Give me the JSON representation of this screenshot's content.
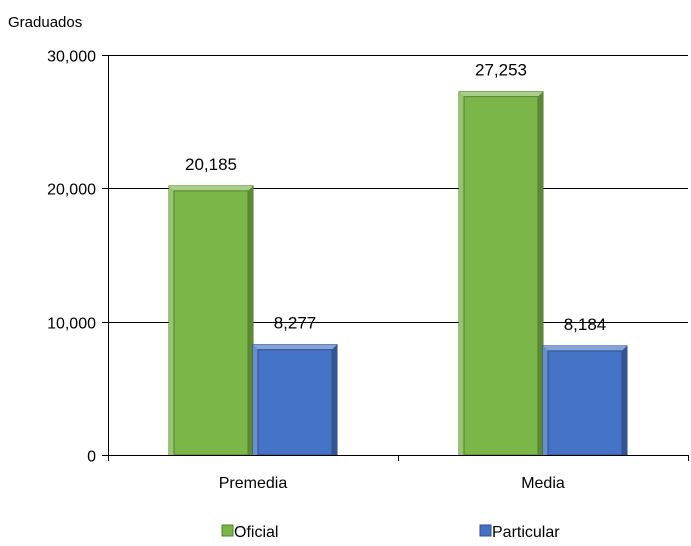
{
  "chart_data": {
    "type": "bar",
    "title": "",
    "xlabel": "",
    "ylabel": "Graduados",
    "categories": [
      "Premedia",
      "Media"
    ],
    "series": [
      {
        "name": "Oficial",
        "values": [
          20185,
          27253
        ],
        "labels": [
          "20,185",
          "27,253"
        ],
        "color": "#7AB648",
        "style": "bevel"
      },
      {
        "name": "Particular",
        "values": [
          8277,
          8184
        ],
        "labels": [
          "8,277",
          "8,184"
        ],
        "color": "#4472C4",
        "style": "bevel"
      }
    ],
    "ylim": [
      0,
      30000
    ],
    "yticks": [
      {
        "value": 0,
        "label": "0"
      },
      {
        "value": 10000,
        "label": "10,000"
      },
      {
        "value": 20000,
        "label": "20,000"
      },
      {
        "value": 30000,
        "label": "30,000"
      }
    ],
    "grid": true,
    "legend": {
      "position": "bottom"
    }
  }
}
